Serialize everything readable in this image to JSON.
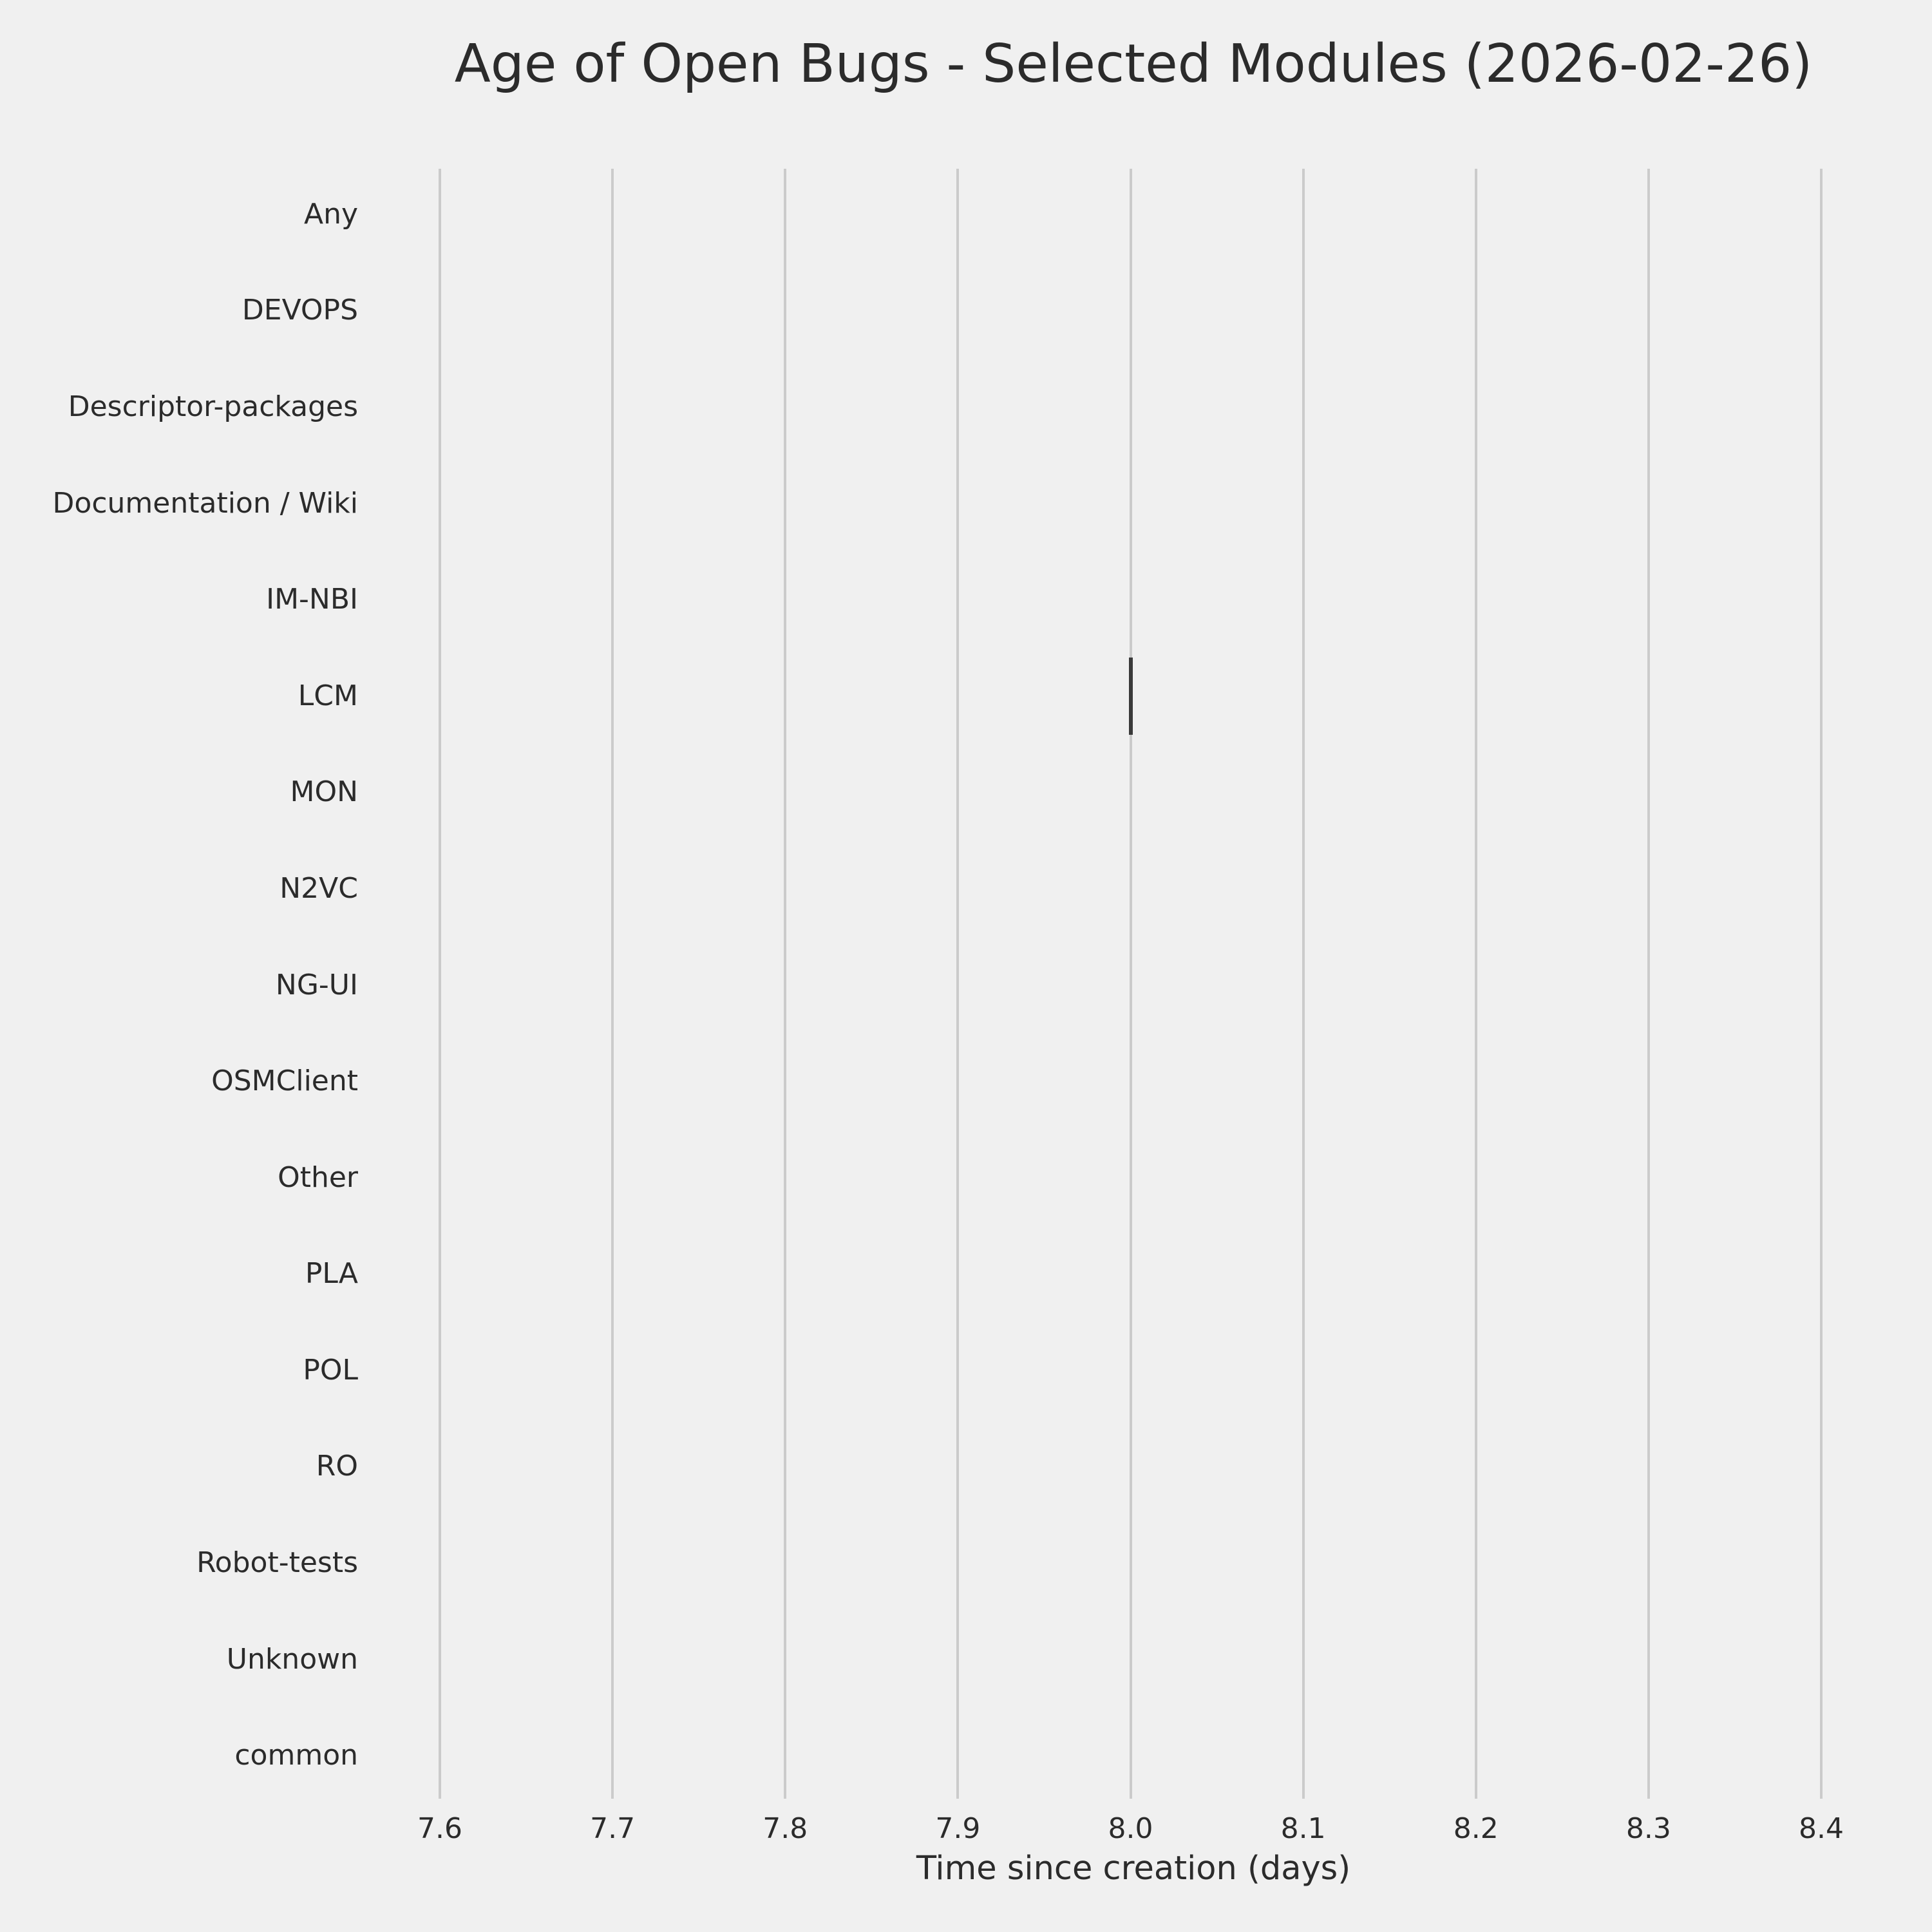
{
  "chart_data": {
    "type": "boxplot",
    "orientation": "horizontal",
    "title": "Age of Open Bugs - Selected Modules (2026-02-26)",
    "xlabel": "Time since creation (days)",
    "ylabel": "",
    "categories": [
      "Any",
      "DEVOPS",
      "Descriptor-packages",
      "Documentation / Wiki",
      "IM-NBI",
      "LCM",
      "MON",
      "N2VC",
      "NG-UI",
      "OSMClient",
      "Other",
      "PLA",
      "POL",
      "RO",
      "Robot-tests",
      "Unknown",
      "common"
    ],
    "values_by_category": {
      "Any": [],
      "DEVOPS": [],
      "Descriptor-packages": [],
      "Documentation / Wiki": [],
      "IM-NBI": [],
      "LCM": [
        8.0
      ],
      "MON": [],
      "N2VC": [],
      "NG-UI": [],
      "OSMClient": [],
      "Other": [],
      "PLA": [],
      "POL": [],
      "RO": [],
      "Robot-tests": [],
      "Unknown": [],
      "common": []
    },
    "xticks": [
      "7.6",
      "7.7",
      "7.8",
      "7.9",
      "8.0",
      "8.1",
      "8.2",
      "8.3",
      "8.4"
    ],
    "xlim": [
      7.6,
      8.4
    ],
    "grid": "vertical-only",
    "legend": false,
    "colors": {
      "background": "#f0f0f0",
      "gridline": "#cbcbcb",
      "text": "#2b2b2b",
      "mark": "#3a3a3a"
    }
  }
}
